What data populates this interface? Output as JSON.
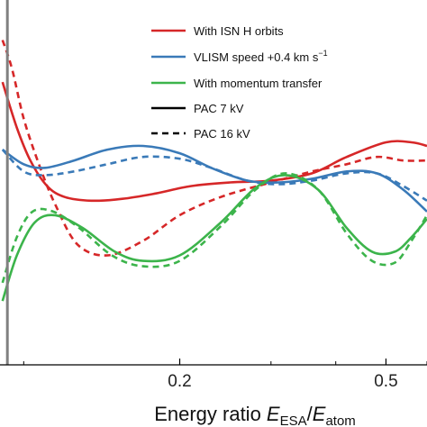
{
  "chart_data": {
    "type": "line",
    "xscale": "log",
    "xlim": [
      0.09,
      0.6
    ],
    "ylim": [
      -1,
      1
    ],
    "grid": false,
    "legend_position": "top-right",
    "xlabel": {
      "main": "Energy ratio ",
      "E1": "E",
      "sub1": "ESA",
      "slash": "/",
      "E2": "E",
      "sub2": "atom"
    },
    "xticks": [
      {
        "value": 0.2,
        "label": "0.2"
      },
      {
        "value": 0.5,
        "label": "0.5"
      }
    ],
    "minor_ticks": [
      0.1,
      0.3,
      0.4,
      0.6
    ],
    "vline_x": 0.093,
    "colors": {
      "red": "#d62728",
      "blue": "#3a7ab8",
      "green": "#3cb44b",
      "black": "#000000"
    },
    "legend": [
      {
        "label": "With ISN H orbits",
        "color": "#d62728",
        "dash": "solid"
      },
      {
        "label": "VLISM speed +0.4 km s",
        "sup": "−1",
        "color": "#3a7ab8",
        "dash": "solid"
      },
      {
        "label": "With momentum transfer",
        "color": "#3cb44b",
        "dash": "solid"
      },
      {
        "label": "PAC 7 kV",
        "color": "#000000",
        "dash": "solid"
      },
      {
        "label": "PAC 16 kV",
        "color": "#000000",
        "dash": "dashed"
      }
    ],
    "series": [
      {
        "name": "With ISN H orbits",
        "detector": "PAC 7 kV",
        "color": "#d62728",
        "dash": "solid",
        "x": [
          0.091,
          0.097,
          0.103,
          0.111,
          0.12,
          0.135,
          0.155,
          0.18,
          0.21,
          0.25,
          0.3,
          0.36,
          0.42,
          0.5,
          0.56,
          0.6
        ],
        "y": [
          0.55,
          0.3,
          0.12,
          -0.02,
          -0.08,
          -0.1,
          -0.09,
          -0.06,
          -0.02,
          0.0,
          0.01,
          0.05,
          0.14,
          0.22,
          0.22,
          0.2
        ]
      },
      {
        "name": "With ISN H orbits",
        "detector": "PAC 16 kV",
        "color": "#d62728",
        "dash": "dashed",
        "x": [
          0.091,
          0.095,
          0.1,
          0.107,
          0.115,
          0.127,
          0.145,
          0.17,
          0.2,
          0.24,
          0.3,
          0.36,
          0.42,
          0.48,
          0.54,
          0.6
        ],
        "y": [
          0.78,
          0.62,
          0.35,
          0.1,
          -0.12,
          -0.34,
          -0.4,
          -0.32,
          -0.18,
          -0.08,
          0.0,
          0.06,
          0.1,
          0.14,
          0.12,
          0.12
        ]
      },
      {
        "name": "VLISM speed +0.4 km s−1",
        "detector": "PAC 7 kV",
        "color": "#3a7ab8",
        "dash": "solid",
        "x": [
          0.091,
          0.1,
          0.11,
          0.125,
          0.145,
          0.17,
          0.2,
          0.23,
          0.27,
          0.31,
          0.36,
          0.42,
          0.48,
          0.54,
          0.6
        ],
        "y": [
          0.18,
          0.1,
          0.08,
          0.12,
          0.18,
          0.2,
          0.16,
          0.08,
          0.01,
          0.0,
          0.02,
          0.06,
          0.05,
          -0.04,
          -0.16
        ]
      },
      {
        "name": "VLISM speed +0.4 km s−1",
        "detector": "PAC 16 kV",
        "color": "#3a7ab8",
        "dash": "dashed",
        "x": [
          0.091,
          0.1,
          0.11,
          0.125,
          0.145,
          0.17,
          0.2,
          0.23,
          0.27,
          0.31,
          0.36,
          0.42,
          0.48,
          0.54,
          0.6
        ],
        "y": [
          0.18,
          0.06,
          0.04,
          0.06,
          0.1,
          0.14,
          0.13,
          0.08,
          0.01,
          -0.01,
          0.01,
          0.05,
          0.05,
          -0.02,
          -0.1
        ]
      },
      {
        "name": "With momentum transfer",
        "detector": "PAC 7 kV",
        "color": "#3cb44b",
        "dash": "solid",
        "x": [
          0.091,
          0.097,
          0.105,
          0.115,
          0.13,
          0.15,
          0.17,
          0.2,
          0.24,
          0.28,
          0.32,
          0.37,
          0.42,
          0.47,
          0.52,
          0.56,
          0.6
        ],
        "y": [
          -0.65,
          -0.4,
          -0.22,
          -0.18,
          -0.25,
          -0.38,
          -0.43,
          -0.4,
          -0.22,
          -0.03,
          0.04,
          -0.04,
          -0.25,
          -0.38,
          -0.38,
          -0.3,
          -0.2
        ]
      },
      {
        "name": "With momentum transfer",
        "detector": "PAC 16 kV",
        "color": "#3cb44b",
        "dash": "dashed",
        "x": [
          0.091,
          0.097,
          0.104,
          0.114,
          0.128,
          0.148,
          0.17,
          0.2,
          0.24,
          0.28,
          0.32,
          0.37,
          0.42,
          0.47,
          0.52,
          0.56,
          0.6
        ],
        "y": [
          -0.55,
          -0.3,
          -0.16,
          -0.16,
          -0.25,
          -0.4,
          -0.46,
          -0.43,
          -0.24,
          -0.04,
          0.05,
          -0.04,
          -0.28,
          -0.43,
          -0.44,
          -0.32,
          -0.18
        ]
      }
    ]
  }
}
